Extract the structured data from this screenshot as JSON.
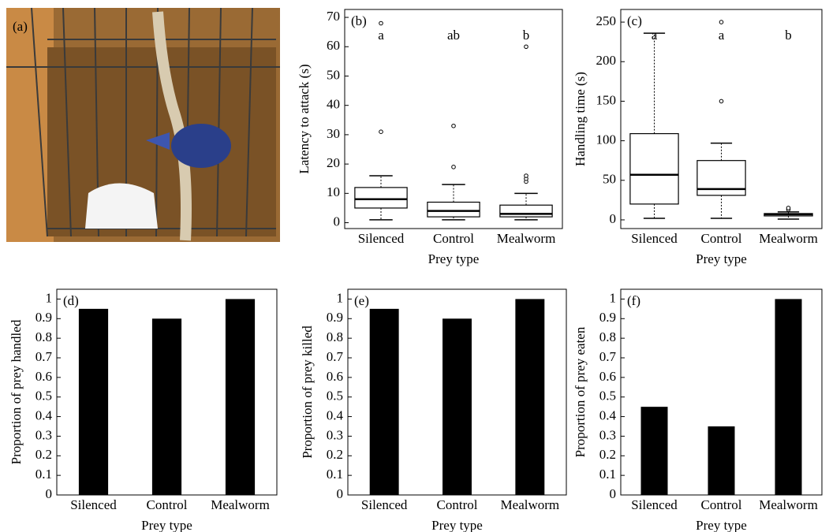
{
  "photo": {
    "label": "(a)"
  },
  "chart_data": [
    {
      "type": "box",
      "panel_label": "(b)",
      "y_label": "Latency to attack (s)",
      "x_label": "Prey type",
      "categories": [
        "Silenced",
        "Control",
        "Mealworm"
      ],
      "boxes": [
        {
          "low": 1,
          "q1": 5,
          "median": 8,
          "q3": 12,
          "high": 16,
          "outliers": [
            31,
            68
          ]
        },
        {
          "low": 1,
          "q1": 2,
          "median": 4,
          "q3": 7,
          "high": 13,
          "outliers": [
            19,
            33
          ]
        },
        {
          "low": 1,
          "q1": 2,
          "median": 3,
          "q3": 6,
          "high": 10,
          "outliers": [
            14,
            15,
            16,
            60
          ]
        }
      ],
      "letters": [
        "a",
        "ab",
        "b"
      ],
      "ylim": [
        -2,
        72.7
      ],
      "yticks": [
        0,
        10,
        20,
        30,
        40,
        50,
        60,
        70
      ]
    },
    {
      "type": "box",
      "panel_label": "(c)",
      "y_label": "Handling time (s)",
      "x_label": "Prey type",
      "categories": [
        "Silenced",
        "Control",
        "Mealworm"
      ],
      "boxes": [
        {
          "low": 2,
          "q1": 20,
          "median": 57,
          "q3": 109,
          "high": 236,
          "outliers": []
        },
        {
          "low": 2,
          "q1": 31,
          "median": 39,
          "q3": 75,
          "high": 97,
          "outliers": [
            150,
            250
          ]
        },
        {
          "low": 1,
          "q1": 5,
          "median": 7,
          "q3": 8,
          "high": 10,
          "outliers": [
            13,
            15
          ]
        }
      ],
      "letters": [
        "a",
        "a",
        "b"
      ],
      "ylim": [
        -11,
        266
      ],
      "yticks": [
        0,
        50,
        100,
        150,
        200,
        250
      ]
    },
    {
      "type": "bar",
      "panel_label": "(d)",
      "y_label": "Proportion of prey handled",
      "x_label": "Prey type",
      "categories": [
        "Silenced",
        "Control",
        "Mealworm"
      ],
      "values": [
        0.95,
        0.9,
        1
      ],
      "color": "#000000",
      "ylim": [
        0,
        1.05
      ],
      "yticks": [
        0,
        0.1,
        0.2,
        0.3,
        0.4,
        0.5,
        0.6,
        0.7,
        0.8,
        0.9,
        1
      ]
    },
    {
      "type": "bar",
      "panel_label": "(e)",
      "y_label": "Proportion of prey killed",
      "x_label": "Prey type",
      "categories": [
        "Silenced",
        "Control",
        "Mealworm"
      ],
      "values": [
        0.95,
        0.9,
        1
      ],
      "color": "#000000",
      "ylim": [
        0,
        1.05
      ],
      "yticks": [
        0,
        0.1,
        0.2,
        0.3,
        0.4,
        0.5,
        0.6,
        0.7,
        0.8,
        0.9,
        1
      ]
    },
    {
      "type": "bar",
      "panel_label": "(f)",
      "y_label": "Proportion of prey eaten",
      "x_label": "Prey type",
      "categories": [
        "Silenced",
        "Control",
        "Mealworm"
      ],
      "values": [
        0.45,
        0.35,
        1
      ],
      "color": "#000000",
      "ylim": [
        0,
        1.05
      ],
      "yticks": [
        0,
        0.1,
        0.2,
        0.3,
        0.4,
        0.5,
        0.6,
        0.7,
        0.8,
        0.9,
        1
      ]
    }
  ]
}
